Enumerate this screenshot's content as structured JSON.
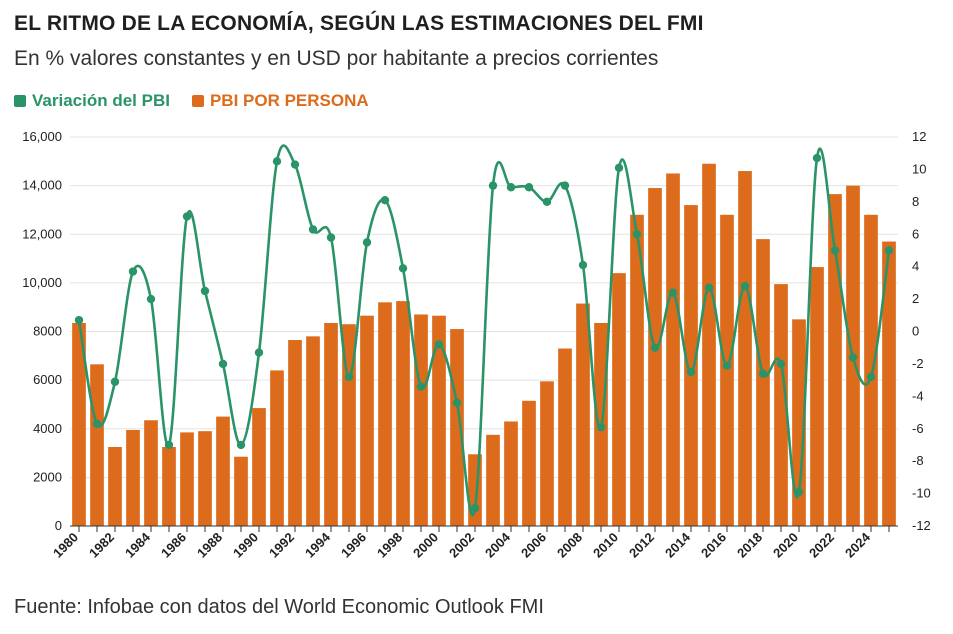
{
  "header": {
    "title": "EL RITMO DE LA ECONOMÍA, SEGÚN LAS ESTIMACIONES DEL FMI",
    "subtitle": "En % valores constantes y en USD por habitante a precios corrientes"
  },
  "legend": {
    "items": [
      {
        "label": "Variación del PBI",
        "color": "#2a9468"
      },
      {
        "label": "PBI POR PERSONA",
        "color": "#dd6b1c"
      }
    ],
    "position": "top-left"
  },
  "footer": {
    "source": "Fuente: Infobae con datos del World Economic Outlook FMI"
  },
  "chart_data": {
    "type": "bar+line",
    "x": [
      1980,
      1981,
      1982,
      1983,
      1984,
      1985,
      1986,
      1987,
      1988,
      1989,
      1990,
      1991,
      1992,
      1993,
      1994,
      1995,
      1996,
      1997,
      1998,
      1999,
      2000,
      2001,
      2002,
      2003,
      2004,
      2005,
      2006,
      2007,
      2008,
      2009,
      2010,
      2011,
      2012,
      2013,
      2014,
      2015,
      2016,
      2017,
      2018,
      2019,
      2020,
      2021,
      2022,
      2023,
      2024,
      2025
    ],
    "x_tick_labels": [
      "1980",
      "1982",
      "1984",
      "1986",
      "1988",
      "1990",
      "1992",
      "1994",
      "1996",
      "1998",
      "2000",
      "2002",
      "2004",
      "2006",
      "2008",
      "2010",
      "2012",
      "2014",
      "2016",
      "2018",
      "2020",
      "2022",
      "2024"
    ],
    "series": [
      {
        "name": "PBI POR PERSONA",
        "type": "bar",
        "axis": "left",
        "color": "#dd6b1c",
        "values": [
          8350,
          6650,
          3250,
          3950,
          4350,
          3250,
          3850,
          3900,
          4500,
          2850,
          4850,
          6400,
          7650,
          7800,
          8350,
          8300,
          8650,
          9200,
          9250,
          8700,
          8650,
          8100,
          2950,
          3750,
          4300,
          5150,
          5950,
          7300,
          9150,
          8350,
          10400,
          12800,
          13900,
          14500,
          13200,
          14900,
          12800,
          14600,
          11800,
          9950,
          8500,
          10650,
          13650,
          14000,
          12800,
          11700
        ]
      },
      {
        "name": "Variación del PBI",
        "type": "line",
        "axis": "right",
        "color": "#2a9468",
        "values": [
          0.7,
          -5.7,
          -3.1,
          3.7,
          2.0,
          -7.0,
          7.1,
          2.5,
          -2.0,
          -7.0,
          -1.3,
          10.5,
          10.3,
          6.3,
          5.8,
          -2.8,
          5.5,
          8.1,
          3.9,
          -3.4,
          -0.8,
          -4.4,
          -10.9,
          9.0,
          8.9,
          8.9,
          8.0,
          9.0,
          4.1,
          -5.9,
          10.1,
          6.0,
          -1.0,
          2.4,
          -2.5,
          2.7,
          -2.1,
          2.8,
          -2.6,
          -2.0,
          -9.9,
          10.7,
          5.0,
          -1.6,
          -2.8,
          5.0
        ]
      }
    ],
    "y_left": {
      "ylim": [
        0,
        16000
      ],
      "ticks": [
        "0",
        "2000",
        "4000",
        "6000",
        "8000",
        "10,000",
        "12,000",
        "14,000",
        "16,000"
      ]
    },
    "y_right": {
      "ylim": [
        -12,
        12
      ],
      "ticks": [
        "-12",
        "-10",
        "-8",
        "-6",
        "-4",
        "-2",
        "0",
        "2",
        "4",
        "6",
        "8",
        "10",
        "12"
      ]
    },
    "grid": true
  }
}
